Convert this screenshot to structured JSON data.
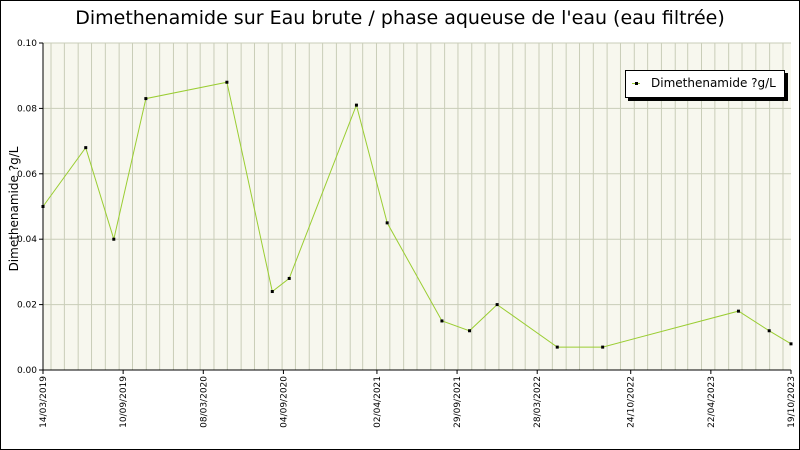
{
  "chart_data": {
    "type": "line",
    "title": "Dimethenamide sur Eau brute / phase aqueuse de l'eau (eau filtrée)",
    "xlabel": "",
    "ylabel": "Dimethenamide ?g/L",
    "ylim": [
      0,
      0.1
    ],
    "yticks": [
      "0.00",
      "0.02",
      "0.04",
      "0.06",
      "0.08",
      "0.10"
    ],
    "xticks": [
      "14/03/2019",
      "10/09/2019",
      "08/03/2020",
      "04/09/2020",
      "02/04/2021",
      "29/09/2021",
      "28/03/2022",
      "24/10/2022",
      "22/04/2023",
      "19/10/2023"
    ],
    "grid": true,
    "legend_position": "top-right",
    "series": [
      {
        "name": "Dimethenamide ?g/L",
        "color": "#9acd32",
        "points": [
          {
            "x": "14/03/2019",
            "y": 0.05
          },
          {
            "x": "18/06/2019",
            "y": 0.068
          },
          {
            "x": "20/08/2019",
            "y": 0.04
          },
          {
            "x": "31/10/2019",
            "y": 0.083
          },
          {
            "x": "30/04/2020",
            "y": 0.088
          },
          {
            "x": "10/08/2020",
            "y": 0.024
          },
          {
            "x": "17/09/2020",
            "y": 0.028
          },
          {
            "x": "15/02/2021",
            "y": 0.081
          },
          {
            "x": "25/04/2021",
            "y": 0.045
          },
          {
            "x": "26/08/2021",
            "y": 0.015
          },
          {
            "x": "27/10/2021",
            "y": 0.012
          },
          {
            "x": "28/12/2021",
            "y": 0.02
          },
          {
            "x": "12/05/2022",
            "y": 0.007
          },
          {
            "x": "22/08/2022",
            "y": 0.007
          },
          {
            "x": "23/06/2023",
            "y": 0.018
          },
          {
            "x": "31/08/2023",
            "y": 0.012
          },
          {
            "x": "19/10/2023",
            "y": 0.008
          }
        ]
      }
    ]
  }
}
